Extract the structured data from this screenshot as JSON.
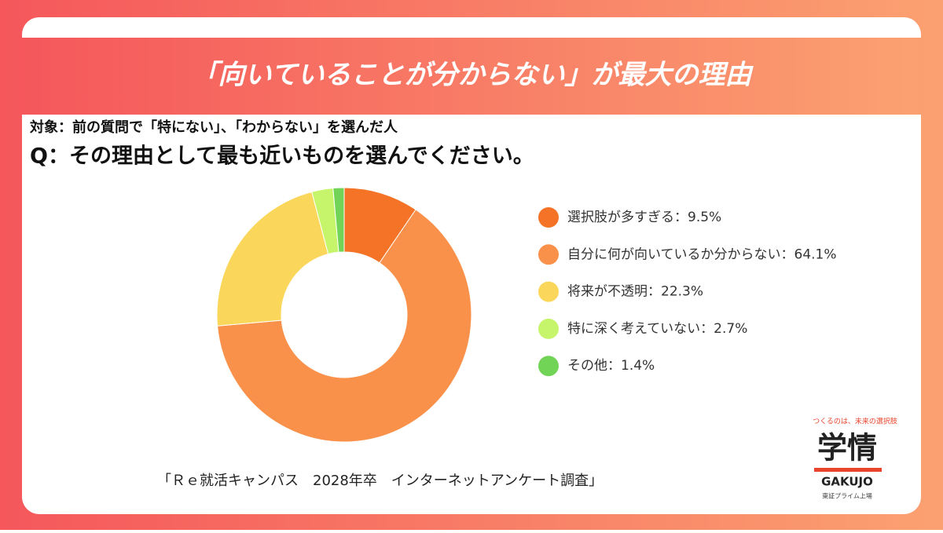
{
  "header": {
    "title": "「向いていることが分からない」が最大の理由",
    "target": "対象：前の質問で「特にない」、「わからない」を選んだ人",
    "question": "Q：その理由として最も近いものを選んでください。"
  },
  "chart_data": {
    "type": "donut",
    "categories": [
      "選択肢が多すぎる",
      "自分に何が向いているか分からない",
      "将来が不透明",
      "特に深く考えていない",
      "その他"
    ],
    "values": [
      9.5,
      64.1,
      22.3,
      2.7,
      1.4
    ],
    "value_labels": [
      "9.5%",
      "64.1%",
      "22.3%",
      "2.7%",
      "1.4%"
    ],
    "legend_separator": "：",
    "colors": [
      "#f47326",
      "#f9914a",
      "#fad65a",
      "#c6f56c",
      "#72d456"
    ]
  },
  "source": "「Ｒｅ就活キャンパス　2028年卒　インターネットアンケート調査」",
  "logo": {
    "tagline": "つくるのは、未来の選択肢",
    "name": "学情",
    "romaji": "GAKUJO",
    "note": "東証プライム上場"
  }
}
